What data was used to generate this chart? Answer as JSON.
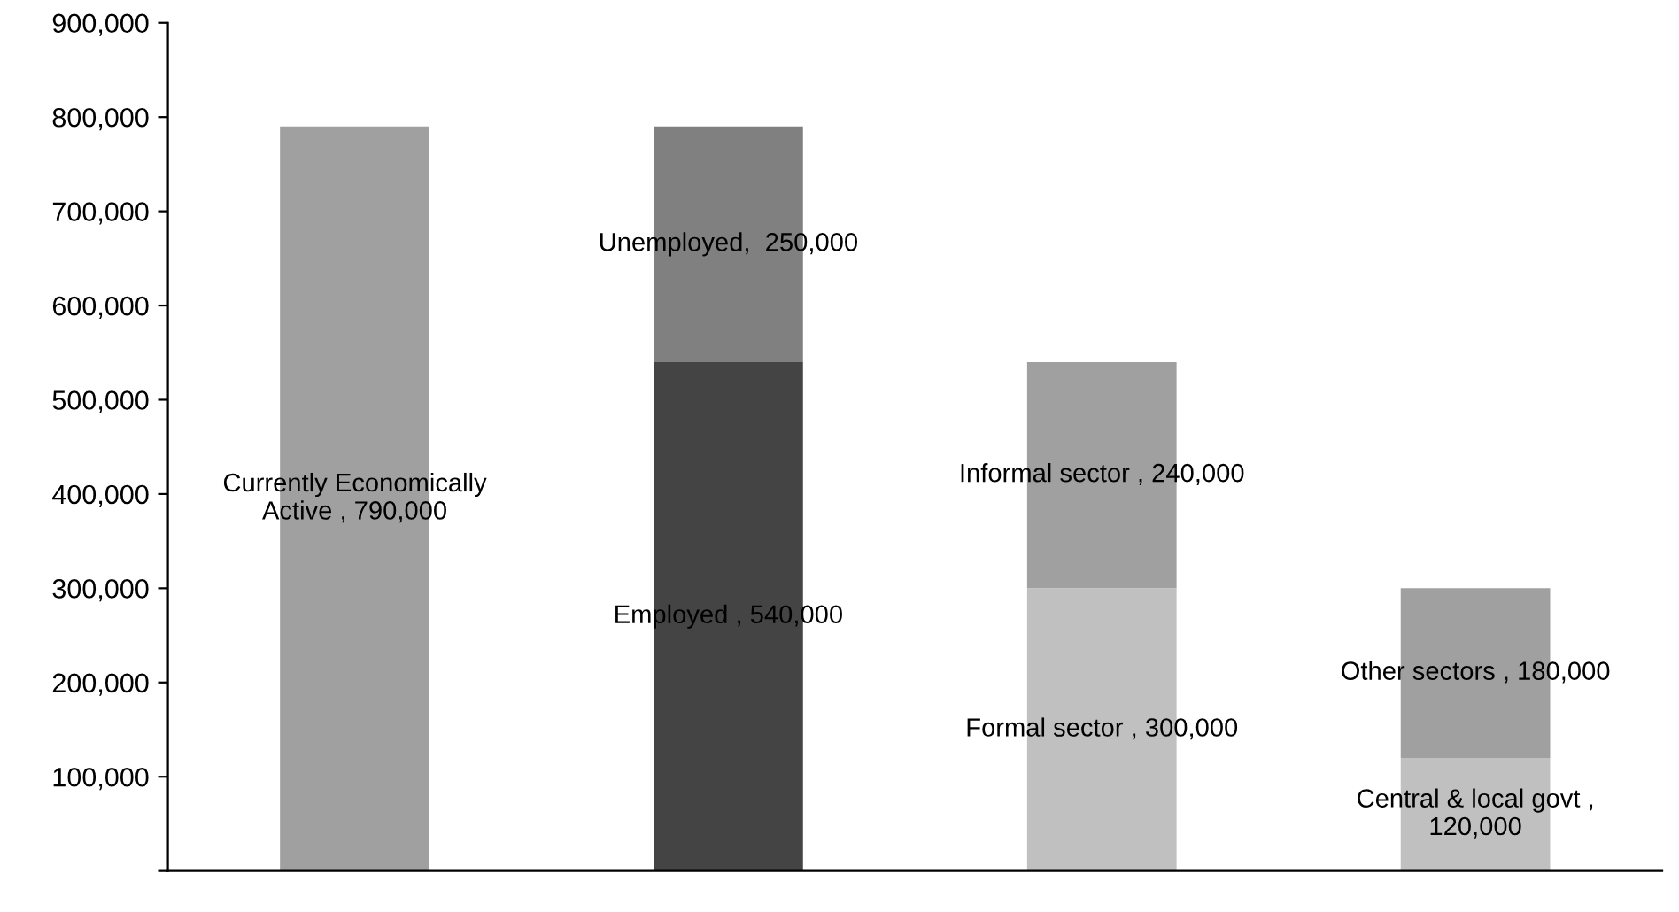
{
  "chart_data": {
    "type": "bar",
    "stacked": true,
    "categories": [
      null,
      null,
      null,
      null
    ],
    "series": [
      {
        "colors": [
          "#a0a0a0",
          "#444444",
          "#c0c0c0",
          "#c0c0c0"
        ],
        "values": [
          790000,
          540000,
          300000,
          120000
        ],
        "value_labels": [
          "Currently Economically\nActive , 790,000",
          "Employed , 540,000",
          "Formal sector , 300,000",
          "Central & local govt ,\n120,000"
        ]
      },
      {
        "colors": [
          null,
          "#808080",
          "#a0a0a0",
          "#a0a0a0"
        ],
        "values": [
          null,
          250000,
          240000,
          180000
        ],
        "value_labels": [
          null,
          "Unemployed,  250,000",
          "Informal sector , 240,000",
          "Other sectors , 180,000"
        ]
      }
    ],
    "ylim": [
      0,
      900000
    ],
    "yticks": [
      {
        "value": 0,
        "label": null
      },
      {
        "value": 100000,
        "label": "100,000"
      },
      {
        "value": 200000,
        "label": "200,000"
      },
      {
        "value": 300000,
        "label": "300,000"
      },
      {
        "value": 400000,
        "label": "400,000"
      },
      {
        "value": 500000,
        "label": "500,000"
      },
      {
        "value": 600000,
        "label": "600,000"
      },
      {
        "value": 700000,
        "label": "700,000"
      },
      {
        "value": 800000,
        "label": "800,000"
      },
      {
        "value": 900000,
        "label": "900,000"
      }
    ],
    "grid": false,
    "legend": false
  }
}
